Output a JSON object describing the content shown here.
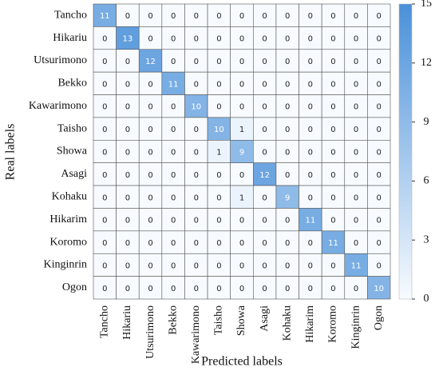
{
  "chart_data": {
    "type": "heatmap",
    "x_labels": [
      "Tancho",
      "Hikariu",
      "Utsurimono",
      "Bekko",
      "Kawarimono",
      "Taisho",
      "Showa",
      "Asagi",
      "Kohaku",
      "Hikarim",
      "Koromo",
      "Kinginrin",
      "Ogon"
    ],
    "y_labels": [
      "Tancho",
      "Hikariu",
      "Utsurimono",
      "Bekko",
      "Kawarimono",
      "Taisho",
      "Showa",
      "Asagi",
      "Kohaku",
      "Hikarim",
      "Koromo",
      "Kinginrin",
      "Ogon"
    ],
    "values": [
      [
        11,
        0,
        0,
        0,
        0,
        0,
        0,
        0,
        0,
        0,
        0,
        0,
        0
      ],
      [
        0,
        13,
        0,
        0,
        0,
        0,
        0,
        0,
        0,
        0,
        0,
        0,
        0
      ],
      [
        0,
        0,
        12,
        0,
        0,
        0,
        0,
        0,
        0,
        0,
        0,
        0,
        0
      ],
      [
        0,
        0,
        0,
        11,
        0,
        0,
        0,
        0,
        0,
        0,
        0,
        0,
        0
      ],
      [
        0,
        0,
        0,
        0,
        10,
        0,
        0,
        0,
        0,
        0,
        0,
        0,
        0
      ],
      [
        0,
        0,
        0,
        0,
        0,
        10,
        1,
        0,
        0,
        0,
        0,
        0,
        0
      ],
      [
        0,
        0,
        0,
        0,
        0,
        1,
        9,
        0,
        0,
        0,
        0,
        0,
        0
      ],
      [
        0,
        0,
        0,
        0,
        0,
        0,
        0,
        12,
        0,
        0,
        0,
        0,
        0
      ],
      [
        0,
        0,
        0,
        0,
        0,
        0,
        1,
        0,
        9,
        0,
        0,
        0,
        0
      ],
      [
        0,
        0,
        0,
        0,
        0,
        0,
        0,
        0,
        0,
        11,
        0,
        0,
        0
      ],
      [
        0,
        0,
        0,
        0,
        0,
        0,
        0,
        0,
        0,
        0,
        11,
        0,
        0
      ],
      [
        0,
        0,
        0,
        0,
        0,
        0,
        0,
        0,
        0,
        0,
        0,
        11,
        0
      ],
      [
        0,
        0,
        0,
        0,
        0,
        0,
        0,
        0,
        0,
        0,
        0,
        0,
        10
      ]
    ],
    "xlabel": "Predicted labels",
    "ylabel": "Real labels",
    "clim": [
      0,
      15
    ],
    "cticks": [
      0,
      3,
      6,
      9,
      12,
      15
    ],
    "colors": [
      "#f7fbff",
      "#4a90d9"
    ]
  }
}
